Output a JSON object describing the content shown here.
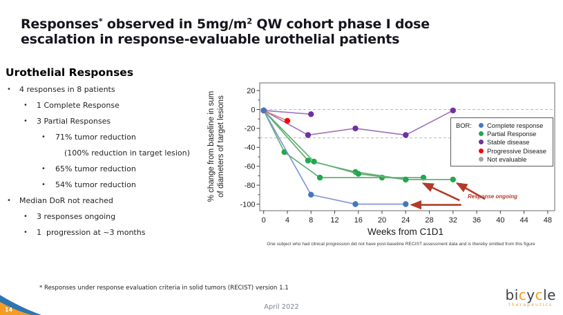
{
  "slide": {
    "title": {
      "l1a": "Responses",
      "l1sup": "*",
      "l1b": " observed in 5mg/m",
      "l1sup2": "2",
      "l1c": " QW cohort phase I dose",
      "l2": "escalation in response-evaluable urothelial patients"
    },
    "footnote": "* Responses under response evaluation criteria in solid tumors (RECIST) version 1.1",
    "date": "April 2022",
    "page_number": "14",
    "logo": {
      "p1": "bi",
      "c1": "c",
      "p2": "y",
      "c2": "c",
      "p3": "le",
      "subtitle": "therapeutics"
    }
  },
  "panel": {
    "heading": "Urothelial Responses",
    "items": [
      {
        "level": 1,
        "bullet": true,
        "text": "4 responses in 8 patients"
      },
      {
        "level": 2,
        "bullet": true,
        "text": "1 Complete Response"
      },
      {
        "level": 2,
        "bullet": true,
        "text": "3 Partial Responses"
      },
      {
        "level": 3,
        "bullet": true,
        "text": "71% tumor reduction"
      },
      {
        "level": 4,
        "bullet": false,
        "text": "(100% reduction in target lesion)"
      },
      {
        "level": 3,
        "bullet": true,
        "text": "65% tumor reduction"
      },
      {
        "level": 3,
        "bullet": true,
        "text": "54% tumor reduction"
      },
      {
        "level": 1,
        "bullet": true,
        "text": "Median DoR not reached"
      },
      {
        "level": 2,
        "bullet": true,
        "text": "3 responses ongoing"
      },
      {
        "level": 2,
        "bullet": true,
        "text": "1  progression at ~3 months"
      }
    ]
  },
  "chart_data": {
    "type": "line",
    "title": "",
    "xlabel": "Weeks from C1D1",
    "ylabel_line1": "% change from baseline in sum",
    "ylabel_line2": "of diameters of target lesions",
    "xlim": [
      -0.7,
      49.2
    ],
    "ylim": [
      -107,
      28
    ],
    "x_ticks": [
      0,
      4,
      8,
      12,
      16,
      20,
      24,
      28,
      32,
      36,
      40,
      44,
      48
    ],
    "y_ticks_labeled": [
      20,
      0,
      -20,
      -40,
      -60,
      -80,
      -100
    ],
    "y_ticks_minor_step": 10,
    "grid": "dashed horizontal reference lines only",
    "reference_lines": [
      0,
      -30
    ],
    "legend": {
      "title": "BOR:",
      "position": "upper right",
      "entries": [
        {
          "label": "Complete response",
          "color": "#4577be"
        },
        {
          "label": "Partial Response",
          "color": "#21a84d"
        },
        {
          "label": "Stable disease",
          "color": "#7030a0"
        },
        {
          "label": "Progressive Disease",
          "color": "#fe0000"
        },
        {
          "label": "Not evaluable",
          "color": "#a6a6a6"
        }
      ]
    },
    "series": [
      {
        "name": "Partial Response 1",
        "bor": "Partial Response",
        "marker_color": "#21a84d",
        "line_color": "#63af74",
        "x": [
          0,
          3.5,
          9.5,
          20,
          27
        ],
        "y": [
          -1,
          -45,
          -72,
          -72,
          -72
        ],
        "ongoing": true
      },
      {
        "name": "Partial Response 2",
        "bor": "Partial Response",
        "marker_color": "#21a84d",
        "line_color": "#63af74",
        "x": [
          0,
          7.5,
          15.5,
          24,
          32
        ],
        "y": [
          -1,
          -54,
          -66,
          -74,
          -74
        ],
        "ongoing": true
      },
      {
        "name": "Partial Response 3",
        "bor": "Partial Response",
        "marker_color": "#21a84d",
        "line_color": "#63af74",
        "x": [
          0,
          8.5,
          16,
          24
        ],
        "y": [
          -1,
          -55,
          -68,
          -74
        ],
        "ongoing": false
      },
      {
        "name": "Stable disease 1",
        "bor": "Stable disease",
        "marker_color": "#7030a0",
        "line_color": "#a078c0",
        "x": [
          0,
          8
        ],
        "y": [
          -1,
          -5
        ],
        "ongoing": false
      },
      {
        "name": "Stable disease 2",
        "bor": "Stable disease",
        "marker_color": "#7030a0",
        "line_color": "#a078c0",
        "x": [
          0,
          7.5,
          15.5,
          24,
          32
        ],
        "y": [
          -1,
          -27,
          -20,
          -27,
          -1
        ],
        "ongoing": false
      },
      {
        "name": "Progressive Disease",
        "bor": "Progressive Disease",
        "marker_color": "#fe0000",
        "line_color": "#d9827a",
        "x": [
          0,
          4
        ],
        "y": [
          -1,
          -12
        ],
        "ongoing": false
      },
      {
        "name": "Complete response",
        "bor": "Complete response",
        "marker_color": "#4577be",
        "line_color": "#8595d5",
        "x": [
          0,
          8,
          15.5,
          24
        ],
        "y": [
          -1,
          -90,
          -100,
          -100
        ],
        "ongoing": true
      }
    ],
    "annotation": {
      "text": "Response ongoing",
      "color": "#b23b2a",
      "arrows": [
        {
          "x1": 33.4,
          "y1": -100.8,
          "x2": 25.0,
          "y2": -100.8
        },
        {
          "x1": 33.1,
          "y1": -96.0,
          "x2": 27.0,
          "y2": -78.2
        },
        {
          "x1": 37.4,
          "y1": -94.6,
          "x2": 32.7,
          "y2": -78.0
        }
      ]
    },
    "footnote": "One subject who had clinical progression did not have post-baseline RECIST assessment data and is thereby omitted from this figure"
  }
}
